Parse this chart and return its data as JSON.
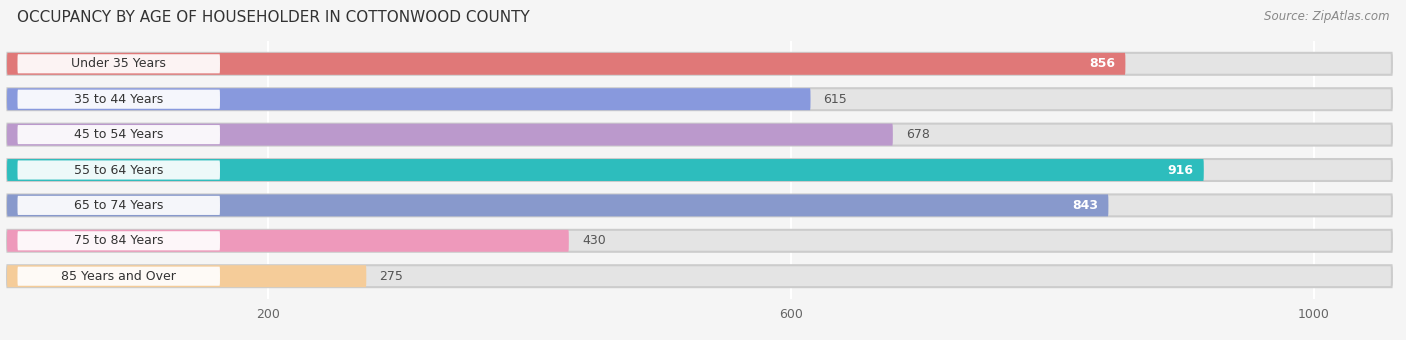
{
  "title": "OCCUPANCY BY AGE OF HOUSEHOLDER IN COTTONWOOD COUNTY",
  "source": "Source: ZipAtlas.com",
  "categories": [
    "Under 35 Years",
    "35 to 44 Years",
    "45 to 54 Years",
    "55 to 64 Years",
    "65 to 74 Years",
    "75 to 84 Years",
    "85 Years and Over"
  ],
  "values": [
    856,
    615,
    678,
    916,
    843,
    430,
    275
  ],
  "bar_colors": [
    "#e07878",
    "#8899dd",
    "#bb99cc",
    "#2dbdbd",
    "#8899cc",
    "#ee99bb",
    "#f5cc99"
  ],
  "xlim_max": 1060,
  "xticks": [
    200,
    600,
    1000
  ],
  "background_color": "#f5f5f5",
  "bar_bg_color": "#e4e4e4",
  "title_fontsize": 11,
  "label_fontsize": 9,
  "value_fontsize": 9,
  "bar_height": 0.62,
  "value_threshold": 700
}
